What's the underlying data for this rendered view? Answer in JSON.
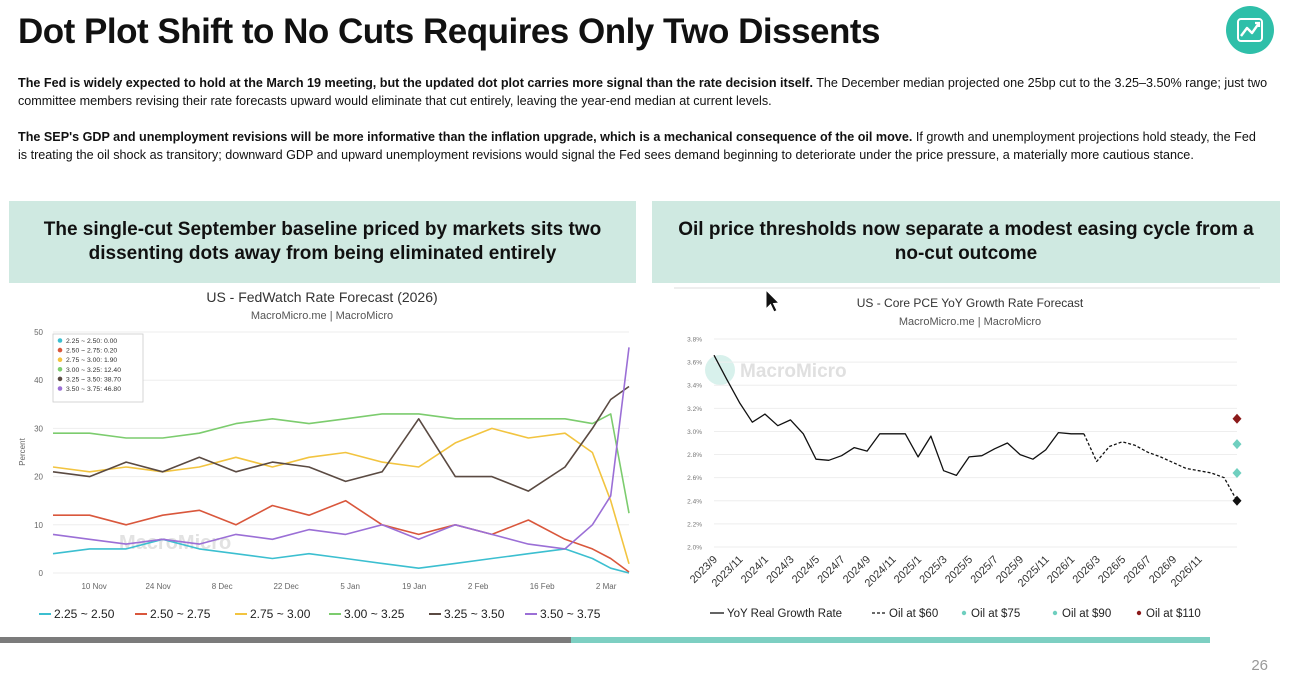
{
  "header": {
    "title": "Dot Plot Shift to No Cuts Requires Only Two Dissents",
    "logo_icon": "trend-chart-icon"
  },
  "paragraphs": [
    {
      "bold": "The Fed is widely expected to hold at the March 19 meeting, but the updated dot plot carries more signal than the rate decision itself.",
      "text": " The December median projected one 25bp cut to the 3.25–3.50% range; just two committee members revising their rate forecasts upward would eliminate that cut entirely, leaving the year-end median at current levels."
    },
    {
      "bold": "The SEP's GDP and unemployment revisions will be more informative than the inflation upgrade, which is a mechanical consequence of the oil move.",
      "text": " If growth and unemployment projections hold steady, the Fed is treating the oil shock as transitory; downward GDP and upward unemployment revisions would signal the Fed sees demand beginning to deteriorate under the price pressure, a materially more cautious stance."
    }
  ],
  "panels": {
    "left_title": "The single-cut September baseline priced by markets sits two dissenting dots away from being eliminated entirely",
    "right_title": "Oil price thresholds now separate a modest easing cycle from a no-cut outcome"
  },
  "colors": {
    "accent": "#2fbfa9",
    "panel_bg": "#cfe9e1",
    "s_225": "#3cbfd0",
    "s_250": "#d9573c",
    "s_275": "#f2c440",
    "s_300": "#7ccc6e",
    "s_325": "#5a4a42",
    "s_350": "#9b6fd6"
  },
  "footer": {
    "page_number": "26",
    "progress_fraction": 0.665
  },
  "chart_data": [
    {
      "type": "line",
      "title": "US - FedWatch Rate Forecast (2026)",
      "subtitle": "MacroMicro.me | MacroMicro",
      "watermark": "MacroMicro",
      "ylabel": "Percent",
      "xlabel": "",
      "ylim": [
        0,
        50
      ],
      "yticks": [
        0,
        10,
        20,
        30,
        40,
        50
      ],
      "x_range": [
        0,
        126
      ],
      "x_ticks": [
        {
          "label": "10 Nov",
          "x": 9
        },
        {
          "label": "24 Nov",
          "x": 23
        },
        {
          "label": "8 Dec",
          "x": 37
        },
        {
          "label": "22 Dec",
          "x": 51
        },
        {
          "label": "5 Jan",
          "x": 65
        },
        {
          "label": "19 Jan",
          "x": 79
        },
        {
          "label": "2 Feb",
          "x": 93
        },
        {
          "label": "16 Feb",
          "x": 107
        },
        {
          "label": "2 Mar",
          "x": 121
        }
      ],
      "tooltip_legend": [
        "2.25 ~ 2.50: 0.00",
        "2.50 ~ 2.75: 0.20",
        "2.75 ~ 3.00: 1.90",
        "3.00 ~ 3.25: 12.40",
        "3.25 ~ 3.50: 38.70",
        "3.50 ~ 3.75: 46.80"
      ],
      "series": [
        {
          "name": "2.25 ~ 2.50",
          "color_key": "s_225",
          "x": [
            0,
            8,
            16,
            24,
            32,
            40,
            48,
            56,
            64,
            72,
            80,
            88,
            96,
            104,
            112,
            118,
            122,
            126
          ],
          "values": [
            4,
            5,
            5,
            7,
            5,
            4,
            3,
            4,
            3,
            2,
            1,
            2,
            3,
            4,
            5,
            3,
            1,
            0
          ]
        },
        {
          "name": "2.50 ~ 2.75",
          "color_key": "s_250",
          "x": [
            0,
            8,
            16,
            24,
            32,
            40,
            48,
            56,
            64,
            72,
            80,
            88,
            96,
            104,
            112,
            118,
            122,
            126
          ],
          "values": [
            12,
            12,
            10,
            12,
            13,
            10,
            14,
            12,
            15,
            10,
            8,
            10,
            8,
            11,
            7,
            5,
            3,
            0.2
          ]
        },
        {
          "name": "2.75 ~ 3.00",
          "color_key": "s_275",
          "x": [
            0,
            8,
            16,
            24,
            32,
            40,
            48,
            56,
            64,
            72,
            80,
            88,
            96,
            104,
            112,
            118,
            122,
            126
          ],
          "values": [
            22,
            21,
            22,
            21,
            22,
            24,
            22,
            24,
            25,
            23,
            22,
            27,
            30,
            28,
            29,
            25,
            15,
            1.9
          ]
        },
        {
          "name": "3.00 ~ 3.25",
          "color_key": "s_300",
          "x": [
            0,
            8,
            16,
            24,
            32,
            40,
            48,
            56,
            64,
            72,
            80,
            88,
            96,
            104,
            112,
            118,
            122,
            126
          ],
          "values": [
            29,
            29,
            28,
            28,
            29,
            31,
            32,
            31,
            32,
            33,
            33,
            32,
            32,
            32,
            32,
            31,
            33,
            12.4
          ]
        },
        {
          "name": "3.25 ~ 3.50",
          "color_key": "s_325",
          "x": [
            0,
            8,
            16,
            24,
            32,
            40,
            48,
            56,
            64,
            72,
            80,
            88,
            96,
            104,
            112,
            118,
            122,
            126
          ],
          "values": [
            21,
            20,
            23,
            21,
            24,
            21,
            23,
            22,
            19,
            21,
            32,
            20,
            20,
            17,
            22,
            30,
            36,
            38.7
          ]
        },
        {
          "name": "3.50 ~ 3.75",
          "color_key": "s_350",
          "x": [
            0,
            8,
            16,
            24,
            32,
            40,
            48,
            56,
            64,
            72,
            80,
            88,
            96,
            104,
            112,
            118,
            122,
            126
          ],
          "values": [
            8,
            7,
            6,
            7,
            6,
            8,
            7,
            9,
            8,
            10,
            7,
            10,
            8,
            6,
            5,
            10,
            16,
            46.8
          ]
        }
      ]
    },
    {
      "type": "line",
      "title": "US - Core PCE YoY Growth Rate Forecast",
      "subtitle": "MacroMicro.me | MacroMicro",
      "watermark": "MacroMicro",
      "ylim": [
        2.0,
        3.8
      ],
      "yticks": [
        "2.0%",
        "2.2%",
        "2.4%",
        "2.6%",
        "2.8%",
        "3.0%",
        "3.2%",
        "3.4%",
        "3.6%",
        "3.8%"
      ],
      "ytick_values": [
        2.0,
        2.2,
        2.4,
        2.6,
        2.8,
        3.0,
        3.2,
        3.4,
        3.6,
        3.8
      ],
      "x_range": [
        0,
        41
      ],
      "x_ticks": [
        {
          "label": "2023/9",
          "x": 0
        },
        {
          "label": "2023/11",
          "x": 2
        },
        {
          "label": "2024/1",
          "x": 4
        },
        {
          "label": "2024/3",
          "x": 6
        },
        {
          "label": "2024/5",
          "x": 8
        },
        {
          "label": "2024/7",
          "x": 10
        },
        {
          "label": "2024/9",
          "x": 12
        },
        {
          "label": "2024/11",
          "x": 14
        },
        {
          "label": "2025/1",
          "x": 16
        },
        {
          "label": "2025/3",
          "x": 18
        },
        {
          "label": "2025/5",
          "x": 20
        },
        {
          "label": "2025/7",
          "x": 22
        },
        {
          "label": "2025/9",
          "x": 24
        },
        {
          "label": "2025/11",
          "x": 26
        },
        {
          "label": "2026/1",
          "x": 28
        },
        {
          "label": "2026/3",
          "x": 30
        },
        {
          "label": "2026/5",
          "x": 32
        },
        {
          "label": "2026/7",
          "x": 34
        },
        {
          "label": "2026/9",
          "x": 36
        },
        {
          "label": "2026/11",
          "x": 38
        }
      ],
      "series": [
        {
          "name": "YoY Real Growth Rate",
          "style": "solid",
          "color": "#111111",
          "x": [
            0,
            1,
            2,
            3,
            4,
            5,
            6,
            7,
            8,
            9,
            10,
            11,
            12,
            13,
            14,
            15,
            16,
            17,
            18,
            19,
            20,
            21,
            22,
            23,
            24,
            25,
            26,
            27,
            28,
            29
          ],
          "values": [
            3.66,
            3.45,
            3.25,
            3.08,
            3.15,
            3.05,
            3.1,
            2.98,
            2.76,
            2.75,
            2.79,
            2.86,
            2.83,
            2.98,
            2.98,
            2.98,
            2.78,
            2.96,
            2.66,
            2.62,
            2.78,
            2.79,
            2.85,
            2.9,
            2.8,
            2.76,
            2.84,
            2.99,
            2.98,
            2.98
          ]
        },
        {
          "name": "Oil at $60",
          "style": "dashed",
          "color": "#111111",
          "x": [
            29,
            30,
            31,
            32,
            33,
            34,
            35,
            36,
            37,
            38,
            39,
            40,
            41
          ],
          "values": [
            2.98,
            2.74,
            2.87,
            2.91,
            2.88,
            2.82,
            2.78,
            2.73,
            2.68,
            2.66,
            2.64,
            2.6,
            2.4
          ]
        },
        {
          "name": "Oil at $75",
          "style": "marker",
          "color": "#6fcfbf",
          "x": [
            41
          ],
          "values": [
            2.64
          ]
        },
        {
          "name": "Oil at $90",
          "style": "marker",
          "color": "#6fcfbf",
          "x": [
            41
          ],
          "values": [
            2.89
          ]
        },
        {
          "name": "Oil at $110",
          "style": "marker",
          "color": "#8b1a1a",
          "x": [
            41
          ],
          "values": [
            3.11
          ]
        }
      ],
      "legend": [
        "YoY Real Growth Rate",
        "Oil at $60",
        "Oil at $75",
        "Oil at $90",
        "Oil at $110"
      ]
    }
  ]
}
